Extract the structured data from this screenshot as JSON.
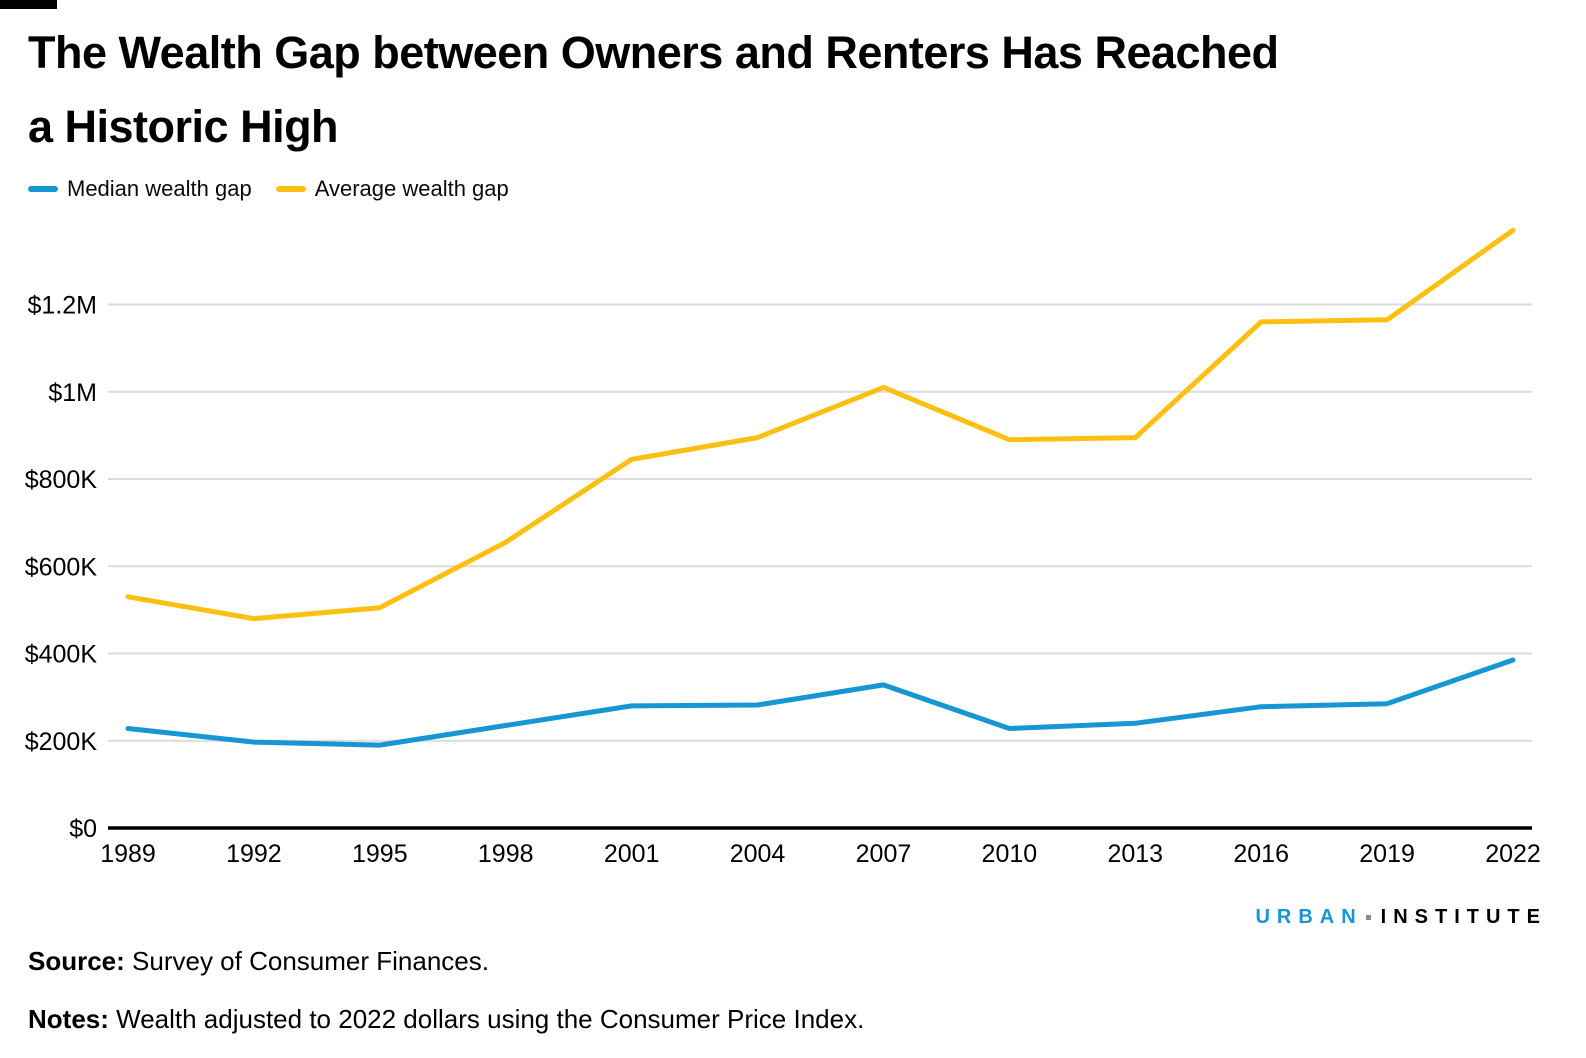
{
  "page": {
    "title_line1": "The Wealth Gap between Owners and Renters Has Reached",
    "title_line2": "a Historic High"
  },
  "legend": [
    {
      "label": "Median wealth gap",
      "color": "#1696d2"
    },
    {
      "label": "Average wealth gap",
      "color": "#fdbf11"
    }
  ],
  "chart_data": {
    "type": "line",
    "title": "The Wealth Gap between Owners and Renters Has Reached a Historic High",
    "categories": [
      "1989",
      "1992",
      "1995",
      "1998",
      "2001",
      "2004",
      "2007",
      "2010",
      "2013",
      "2016",
      "2019",
      "2022"
    ],
    "units": "thousands of 2022 dollars",
    "series": [
      {
        "name": "Median wealth gap",
        "color": "#1696d2",
        "values": [
          228,
          197,
          190,
          235,
          280,
          282,
          328,
          228,
          240,
          278,
          285,
          385
        ]
      },
      {
        "name": "Average wealth gap",
        "color": "#fdbf11",
        "values": [
          530,
          480,
          505,
          655,
          845,
          895,
          1010,
          890,
          895,
          1160,
          1165,
          1370
        ]
      }
    ],
    "y_ticks": [
      {
        "value": 0,
        "label": "$0"
      },
      {
        "value": 200,
        "label": "$200K"
      },
      {
        "value": 400,
        "label": "$400K"
      },
      {
        "value": 600,
        "label": "$600K"
      },
      {
        "value": 800,
        "label": "$800K"
      },
      {
        "value": 1000,
        "label": "$1M"
      },
      {
        "value": 1200,
        "label": "$1.2M"
      }
    ],
    "ylim": [
      0,
      1430
    ],
    "grid": "horizontal",
    "legend_position": "top-left",
    "colors": {
      "grid": "#dcdcdc",
      "axis": "#000000",
      "tick_text": "#000000"
    }
  },
  "footer": {
    "logo": {
      "word1": "URBAN",
      "word2": "INSTITUTE",
      "accent_color": "#1696d2"
    },
    "source_label": "Source:",
    "source_text": " Survey of Consumer Finances.",
    "notes_label": "Notes:",
    "notes_text": " Wealth adjusted to 2022 dollars using the Consumer Price Index."
  }
}
